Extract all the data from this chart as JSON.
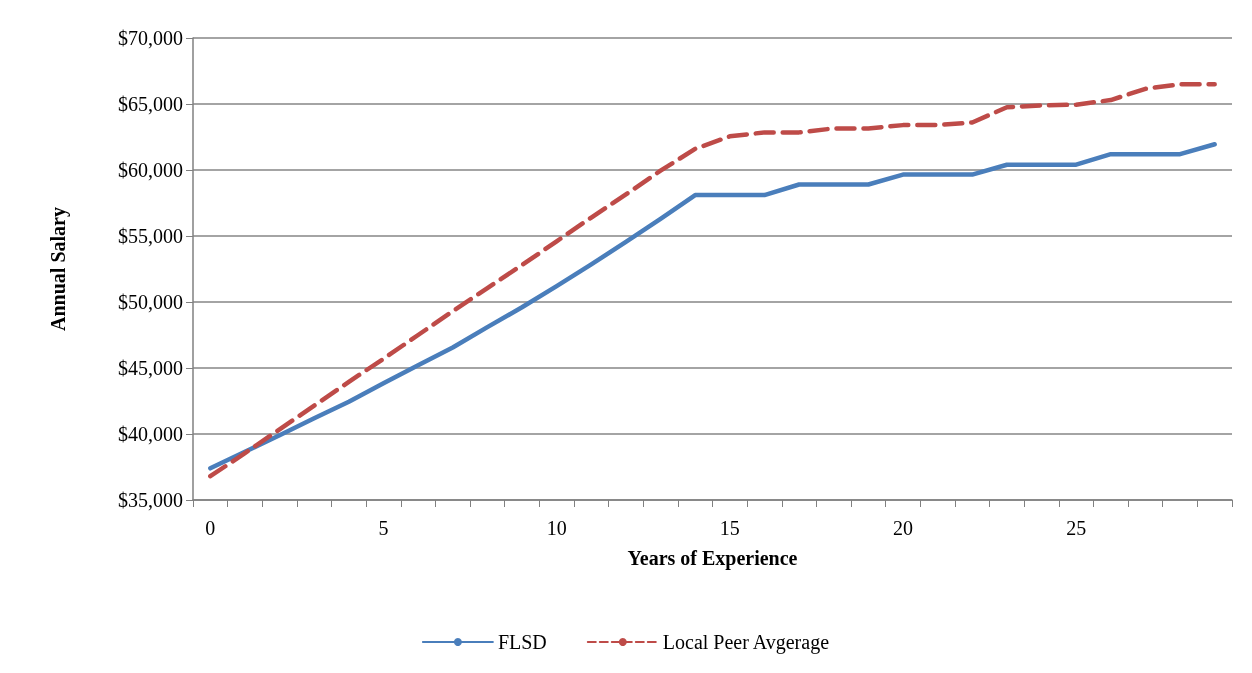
{
  "chart_data": {
    "type": "line",
    "xlabel": "Years of Experience",
    "ylabel": "Annual Salary",
    "categories": [
      "0",
      null,
      null,
      null,
      null,
      "5",
      null,
      null,
      null,
      null,
      "10",
      null,
      null,
      null,
      null,
      "15",
      null,
      null,
      null,
      null,
      "20",
      null,
      null,
      null,
      null,
      "25",
      null,
      null,
      null,
      null
    ],
    "series": [
      {
        "name": "FLSD",
        "color": "#4a7ebb",
        "line_style": "solid",
        "values": [
          37400,
          38650,
          39900,
          41200,
          42450,
          43850,
          45200,
          46550,
          48100,
          49600,
          51200,
          52850,
          54550,
          56300,
          58100,
          58100,
          58100,
          58900,
          58900,
          58900,
          59650,
          59650,
          59650,
          60400,
          60400,
          60400,
          61200,
          61200,
          61200,
          61950
        ]
      },
      {
        "name": "Local Peer Avgerage",
        "color": "#be4b48",
        "line_style": "dashed",
        "values": [
          36800,
          38550,
          40350,
          42150,
          43950,
          45700,
          47500,
          49300,
          51050,
          52800,
          54600,
          56400,
          58150,
          59950,
          61600,
          62550,
          62850,
          62850,
          63150,
          63150,
          63400,
          63400,
          63600,
          64750,
          64900,
          64950,
          65300,
          66150,
          66500,
          66500
        ]
      }
    ],
    "ylim": [
      35000,
      70000
    ],
    "yticks": [
      {
        "value": 35000,
        "label": "$35,000"
      },
      {
        "value": 40000,
        "label": "$40,000"
      },
      {
        "value": 45000,
        "label": "$45,000"
      },
      {
        "value": 50000,
        "label": "$50,000"
      },
      {
        "value": 55000,
        "label": "$55,000"
      },
      {
        "value": 60000,
        "label": "$60,000"
      },
      {
        "value": 65000,
        "label": "$65,000"
      },
      {
        "value": 70000,
        "label": "$70,000"
      }
    ],
    "grid": "y",
    "legend": "bottom",
    "marker": "none"
  }
}
